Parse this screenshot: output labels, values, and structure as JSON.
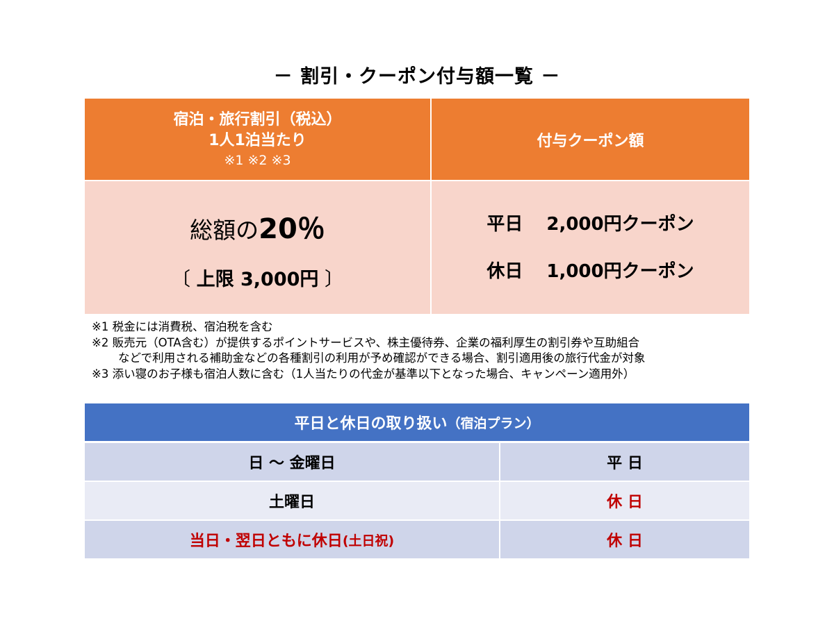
{
  "title": "－ 割引・クーポン付与額一覧 －",
  "discount_table": {
    "header_left": {
      "line1": "宿泊・旅行割引（税込）",
      "line2": "1人1泊当たり",
      "line3": "※1 ※2 ※3"
    },
    "header_right": "付与クーポン額",
    "discount": {
      "prefix": "総額の",
      "rate": "20％"
    },
    "limit": {
      "open": "〔",
      "text": "上限 3,000円",
      "close": "〕"
    },
    "coupons": [
      {
        "day": "平日",
        "amount": "2,000円クーポン"
      },
      {
        "day": "休日",
        "amount": "1,000円クーポン"
      }
    ]
  },
  "notes": [
    "※1 税金には消費税、宿泊税を含む",
    "※2 販売元（OTA含む）が提供するポイントサービスや、株主優待券、企業の福利厚生の割引券や互助組合",
    "などで利用される補助金などの各種割引の利用が予め確認ができる場合、割引適用後の旅行代金が対象",
    "※3 添い寝のお子様も宿泊人数に含む（1人当たりの代金が基準以下となった場合、キャンペーン適用外）"
  ],
  "day_table": {
    "header_main": "平日と休日の取り扱い",
    "header_sub": "（宿泊プラン）",
    "rows": [
      {
        "left": "日 〜 金曜日",
        "right": "平 日",
        "left_color": "#000000",
        "right_color": "#000000"
      },
      {
        "left": "土曜日",
        "right": "休 日",
        "left_color": "#000000",
        "right_color": "#c00000"
      },
      {
        "left_main": "当日・翌日ともに休日",
        "left_sub": "(土日祝)",
        "right": "休 日",
        "left_color": "#c00000",
        "right_color": "#c00000"
      }
    ]
  },
  "colors": {
    "orange_header": "#ed7d31",
    "salmon_body": "#f8d5cb",
    "blue_header": "#4472c4",
    "row_dark": "#cfd5ea",
    "row_light": "#e9ebf5",
    "holiday_red": "#c00000"
  }
}
